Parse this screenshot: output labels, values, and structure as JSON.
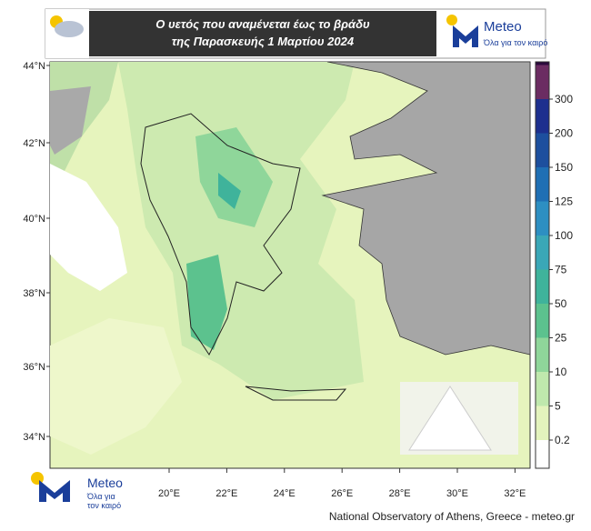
{
  "header": {
    "title_lines": [
      "Ο υετός που αναμένεται έως το βράδυ",
      "της Παρασκευής 1 Μαρτίου 2024"
    ],
    "logo_name": "Meteo",
    "logo_slogan": "Όλα για τον καιρό"
  },
  "map": {
    "lat_labels": [
      "44°N",
      "42°N",
      "40°N",
      "38°N",
      "36°N",
      "34°N"
    ],
    "lon_labels": [
      "20°E",
      "22°E",
      "24°E",
      "26°E",
      "28°E",
      "30°E",
      "32°E"
    ]
  },
  "colorbar": {
    "labels": [
      300,
      200,
      150,
      125,
      100,
      75,
      50,
      25,
      10,
      5,
      0.2
    ],
    "colors": [
      "#2b0a3d",
      "#6b2c62",
      "#1d2f8e",
      "#1d4f9e",
      "#1f6fb4",
      "#2d8fc2",
      "#3aa7b7",
      "#3fb39b",
      "#5cc28e",
      "#8fd69a",
      "#bfe8ad",
      "#e3f3bd",
      "#ffffff"
    ]
  },
  "footer": {
    "source": "National Observatory of Athens, Greece - meteo.gr",
    "logo_name": "Meteo",
    "logo_slogan_lines": [
      "Όλα για",
      "τον καιρό"
    ]
  }
}
